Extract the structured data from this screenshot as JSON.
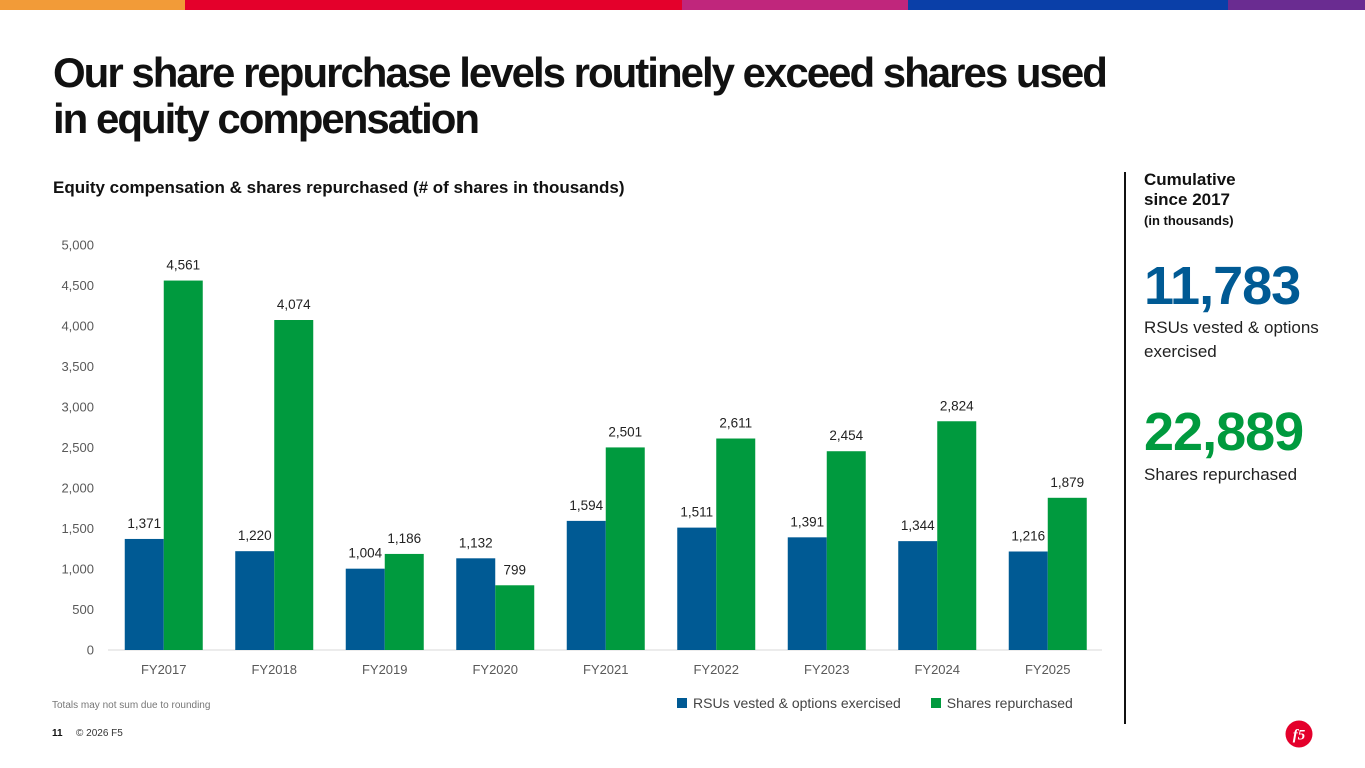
{
  "colors": {
    "rsu": "#005A94",
    "repurchase": "#009A3E",
    "accent_bar": [
      "#F29B38",
      "#E4002B",
      "#C0267C",
      "#0A3FA8",
      "#6A2C91"
    ]
  },
  "title": "Our share repurchase levels routinely exceed shares used in equity compensation",
  "chart_title": "Equity compensation & shares repurchased (# of shares in thousands)",
  "chart_data": {
    "type": "bar",
    "title": "Equity compensation & shares repurchased (# of shares in thousands)",
    "categories": [
      "FY2017",
      "FY2018",
      "FY2019",
      "FY2020",
      "FY2021",
      "FY2022",
      "FY2023",
      "FY2024",
      "FY2025"
    ],
    "series": [
      {
        "name": "RSUs vested & options exercised",
        "values": [
          1371,
          1220,
          1004,
          1132,
          1594,
          1511,
          1391,
          1344,
          1216
        ]
      },
      {
        "name": "Shares repurchased",
        "values": [
          4561,
          4074,
          1186,
          799,
          2501,
          2611,
          2454,
          2824,
          1879
        ]
      }
    ],
    "yticks": [
      0,
      500,
      1000,
      1500,
      2000,
      2500,
      3000,
      3500,
      4000,
      4500,
      5000
    ],
    "ylim": [
      0,
      5000
    ],
    "xlabel": "",
    "ylabel": "",
    "legend_position": "bottom-right"
  },
  "footnote": "Totals may not sum due to rounding",
  "page_number": "11",
  "copyright": "© 2026 F5",
  "sidebar": {
    "heading": "Cumulative since 2017",
    "subheading": "(in thousands)",
    "stat1": {
      "value": "11,783",
      "label": "RSUs vested & options exercised"
    },
    "stat2": {
      "value": "22,889",
      "label": "Shares repurchased"
    }
  },
  "logo_text": "f5"
}
